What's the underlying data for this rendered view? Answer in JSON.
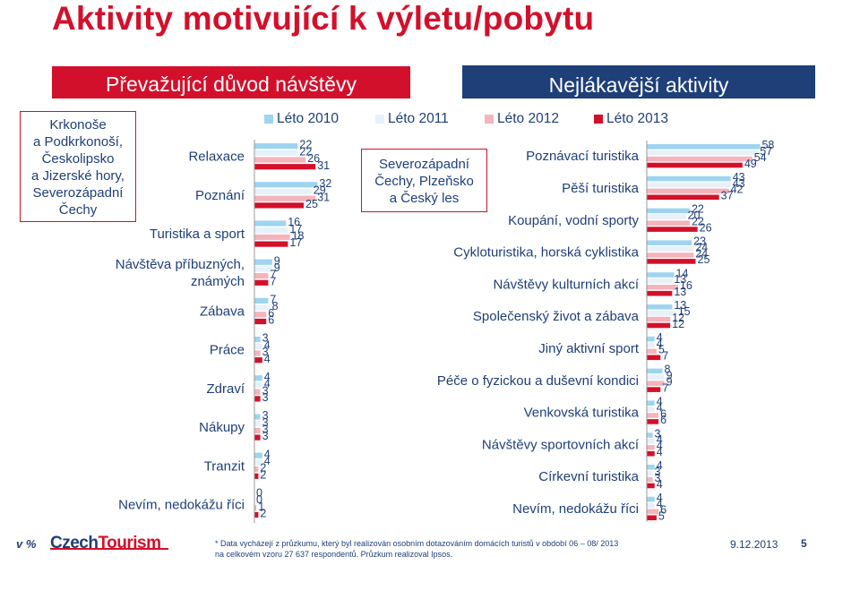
{
  "page": {
    "title": "Aktivity motivující k výletu/pobytu",
    "left_header": "Převažující důvod návštěvy",
    "right_header": "Nejlákavější aktivity",
    "left_region_lines": [
      "Krkonoše",
      "a Podkrkonoší,",
      "Českolipsko",
      "a Jizerské hory,",
      "Severozápadní",
      "Čechy"
    ],
    "right_region_lines": [
      "Severozápadní",
      "Čechy, Plzeňsko",
      "a Český les"
    ],
    "unit": "v %",
    "logo_part1": "Czech",
    "logo_part2": "Tourism",
    "footnote_line1": "* Data vycházejí z průzkumu, který byl realizován osobním dotazováním domácích turistů v období 06 – 08/ 2013",
    "footnote_line2": "na celkovém vzoru 27 637  respondentů. Průzkum realizoval Ipsos.",
    "date": "9.12.2013",
    "page_number": "5"
  },
  "legend": [
    "Léto 2010",
    "Léto 2011",
    "Léto 2012",
    "Léto 2013"
  ],
  "colors": {
    "series": [
      "#9fd4f0",
      "#e6f1fa",
      "#f4b4bc",
      "#d3102b"
    ],
    "brand_red": "#d3102b",
    "brand_blue": "#1e3f78"
  },
  "chart_data": [
    {
      "type": "bar",
      "orientation": "horizontal",
      "title": "Převažující důvod návštěvy",
      "categories": [
        [
          "Relaxace"
        ],
        [
          "Poznání"
        ],
        [
          "Turistika a sport"
        ],
        [
          "Návštěva příbuzných,",
          "známých"
        ],
        [
          "Zábava"
        ],
        [
          "Práce"
        ],
        [
          "Zdraví"
        ],
        [
          "Nákupy"
        ],
        [
          "Tranzit"
        ],
        [
          "Nevím, nedokážu říci"
        ]
      ],
      "series": [
        {
          "name": "Léto 2010",
          "values": [
            22,
            32,
            16,
            9,
            7,
            3,
            4,
            3,
            4,
            0
          ]
        },
        {
          "name": "Léto 2011",
          "values": [
            22,
            29,
            17,
            9,
            8,
            4,
            4,
            3,
            4,
            0
          ]
        },
        {
          "name": "Léto 2012",
          "values": [
            26,
            31,
            18,
            7,
            6,
            3,
            3,
            3,
            2,
            1
          ]
        },
        {
          "name": "Léto 2013",
          "values": [
            31,
            25,
            17,
            7,
            6,
            4,
            3,
            3,
            2,
            2
          ]
        }
      ]
    },
    {
      "type": "bar",
      "orientation": "horizontal",
      "title": "Nejlákavější aktivity",
      "categories": [
        [
          "Poznávací turistika"
        ],
        [
          "Pěší turistika"
        ],
        [
          "Koupání, vodní sporty"
        ],
        [
          "Cykloturistika, horská cyklistika"
        ],
        [
          "Návštěvy kulturních akcí"
        ],
        [
          "Společenský život a zábava"
        ],
        [
          "Jiný aktivní sport"
        ],
        [
          "Péče o fyzickou a duševní kondici"
        ],
        [
          "Venkovská turistika"
        ],
        [
          "Návštěvy sportovních akcí"
        ],
        [
          "Církevní turistika"
        ],
        [
          "Nevím, nedokážu říci"
        ]
      ],
      "series": [
        {
          "name": "Léto 2010",
          "values": [
            58,
            43,
            22,
            23,
            14,
            13,
            4,
            8,
            4,
            3,
            4,
            4
          ]
        },
        {
          "name": "Léto 2011",
          "values": [
            57,
            43,
            20,
            24,
            13,
            15,
            4,
            9,
            4,
            4,
            3,
            4
          ]
        },
        {
          "name": "Léto 2012",
          "values": [
            54,
            42,
            22,
            24,
            16,
            12,
            5,
            9,
            6,
            4,
            3,
            6
          ]
        },
        {
          "name": "Léto 2013",
          "values": [
            49,
            37,
            26,
            25,
            13,
            12,
            7,
            7,
            6,
            4,
            4,
            5
          ]
        }
      ]
    }
  ]
}
